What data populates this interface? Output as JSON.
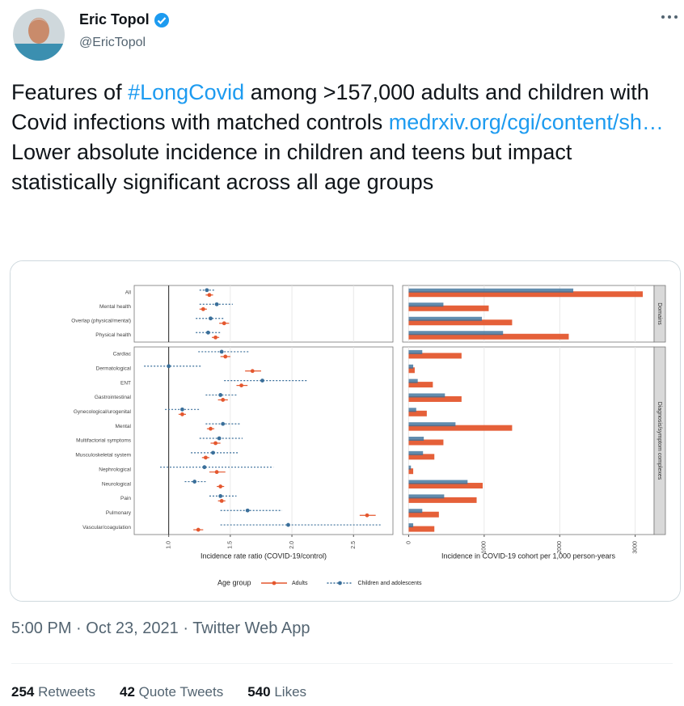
{
  "tweet": {
    "name": "Eric Topol",
    "handle": "@EricTopol",
    "text": [
      {
        "t": "Features of ",
        "link": false
      },
      {
        "t": "#LongCovid",
        "link": true
      },
      {
        "t": " among >157,000 adults and children with Covid infections with matched controls ",
        "link": false
      },
      {
        "t": "medrxiv.org/cgi/content/sh…",
        "link": true
      },
      {
        "t": " Lower absolute incidence in children and teens but impact statistically significant across all age groups",
        "link": false
      }
    ],
    "timestamp": "5:00 PM · Oct 23, 2021 · Twitter Web App",
    "stats": [
      {
        "count": "254",
        "label": "Retweets"
      },
      {
        "count": "42",
        "label": "Quote Tweets"
      },
      {
        "count": "540",
        "label": "Likes"
      }
    ]
  },
  "chart_data": [
    {
      "type": "forest",
      "xlabel": "Incidence rate ratio (COVID-19/control)",
      "xlim": [
        0.72,
        2.82
      ],
      "xticks": [
        {
          "value": 1,
          "label": "1.0"
        },
        {
          "value": 1.5,
          "label": "1.5"
        },
        {
          "value": 2,
          "label": "2.0"
        },
        {
          "value": 2.5,
          "label": "2.5"
        }
      ],
      "refline": 1,
      "grid": true,
      "facets": [
        {
          "categories": [
            "All",
            "Mental health",
            "Overlap (physical/mental)",
            "Physical health"
          ]
        },
        {
          "categories": [
            "Cardiac",
            "Dermatological",
            "ENT",
            "Gastrointestinal",
            "Gynecological/urogenital",
            "Mental",
            "Multifactorial symptoms",
            "Musculoskeletal system",
            "Nephrological",
            "Neurological",
            "Pain",
            "Pulmonary",
            "Vascular/coagulation"
          ]
        }
      ],
      "legend_title": "Age group",
      "series": [
        {
          "name": "Adults",
          "color": "#e4572e",
          "dash": false,
          "values": [
            1.33,
            1.28,
            1.45,
            1.38,
            1.46,
            1.68,
            1.59,
            1.44,
            1.11,
            1.34,
            1.38,
            1.3,
            1.39,
            1.42,
            1.43,
            2.61,
            1.24
          ],
          "low": [
            1.3,
            1.25,
            1.41,
            1.35,
            1.42,
            1.62,
            1.55,
            1.4,
            1.08,
            1.31,
            1.34,
            1.27,
            1.33,
            1.39,
            1.4,
            2.55,
            1.2
          ],
          "high": [
            1.36,
            1.31,
            1.49,
            1.41,
            1.5,
            1.75,
            1.64,
            1.48,
            1.14,
            1.37,
            1.42,
            1.33,
            1.46,
            1.45,
            1.46,
            2.68,
            1.28
          ]
        },
        {
          "name": "Children and adolescents",
          "color": "#3a6f9a",
          "dash": true,
          "values": [
            1.31,
            1.39,
            1.34,
            1.32,
            1.43,
            1.0,
            1.76,
            1.42,
            1.11,
            1.44,
            1.41,
            1.36,
            1.29,
            1.21,
            1.42,
            1.64,
            1.97
          ],
          "low": [
            1.25,
            1.25,
            1.22,
            1.22,
            1.24,
            0.8,
            1.45,
            1.3,
            0.97,
            1.3,
            1.25,
            1.18,
            0.93,
            1.13,
            1.33,
            1.42,
            1.42
          ],
          "high": [
            1.37,
            1.52,
            1.45,
            1.42,
            1.65,
            1.27,
            2.12,
            1.55,
            1.25,
            1.58,
            1.6,
            1.57,
            1.85,
            1.3,
            1.55,
            1.92,
            2.73
          ]
        }
      ]
    },
    {
      "type": "bar",
      "xlabel": "Incidence in COVID-19 cohort per 1,000 person-years",
      "xlim": [
        -80,
        3250
      ],
      "xticks": [
        0,
        1000,
        2000,
        3000
      ],
      "grid": true,
      "facet_labels": [
        "Domains",
        "Diagnosis/symptom complexes"
      ],
      "series": [
        {
          "color": "#e4572e",
          "values": [
            3100,
            1060,
            1370,
            2120,
            700,
            80,
            320,
            700,
            240,
            1370,
            460,
            340,
            60,
            980,
            900,
            400,
            340
          ]
        },
        {
          "color": "#3a6f9a",
          "values": [
            2180,
            460,
            970,
            1250,
            180,
            60,
            120,
            480,
            100,
            620,
            200,
            190,
            30,
            780,
            470,
            180,
            60
          ]
        }
      ]
    }
  ]
}
